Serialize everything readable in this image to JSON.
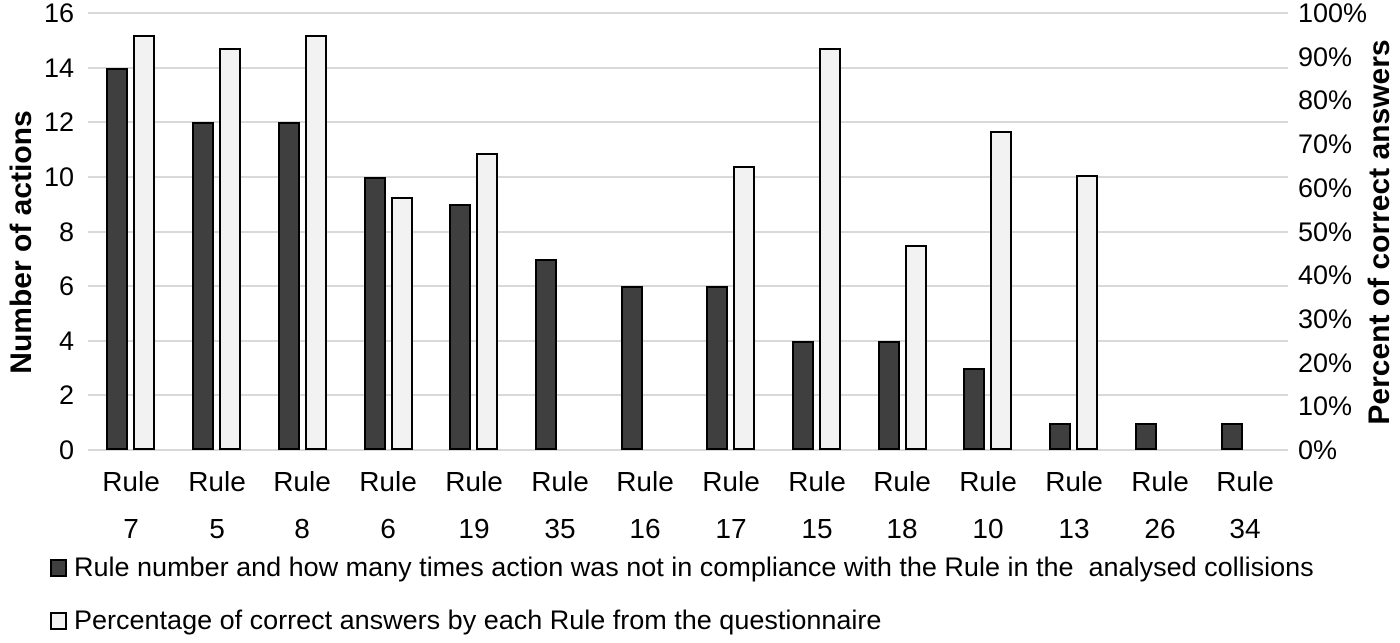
{
  "chart_data": {
    "type": "bar",
    "title": "",
    "categories": [
      "Rule 7",
      "Rule 5",
      "Rule 8",
      "Rule 6",
      "Rule 19",
      "Rule 35",
      "Rule 16",
      "Rule 17",
      "Rule 15",
      "Rule 18",
      "Rule 10",
      "Rule 13",
      "Rule 26",
      "Rule 34"
    ],
    "series": [
      {
        "name": "Rule number and how many times action was not in compliance with the Rule in the  analysed collisions",
        "axis": "left",
        "color": "#3f3f3f",
        "values": [
          14,
          12,
          12,
          10,
          9,
          7,
          6,
          6,
          4,
          4,
          3,
          1,
          1,
          1
        ]
      },
      {
        "name": "Percentage of correct answers by each Rule from the questionnaire",
        "axis": "right",
        "color": "#f2f2f2",
        "values": [
          95,
          92,
          95,
          58,
          68,
          0,
          0,
          65,
          92,
          47,
          73,
          63,
          0,
          0
        ]
      }
    ],
    "axes": {
      "left": {
        "label": "Number of actions",
        "min": 0,
        "max": 16,
        "tick_step": 2,
        "ticks": [
          "0",
          "2",
          "4",
          "6",
          "8",
          "10",
          "12",
          "14",
          "16"
        ]
      },
      "right": {
        "label": "Percent of correct answers",
        "min": 0,
        "max": 100,
        "tick_step": 10,
        "ticks": [
          "0%",
          "10%",
          "20%",
          "30%",
          "40%",
          "50%",
          "60%",
          "70%",
          "80%",
          "90%",
          "100%"
        ]
      }
    },
    "grid": true,
    "legend_position": "bottom"
  },
  "colors": {
    "bar_dark": "#3f3f3f",
    "bar_light": "#f2f2f2",
    "bar_border": "#000000",
    "gridline": "#d9d9d9",
    "text": "#000000",
    "background": "#ffffff"
  }
}
